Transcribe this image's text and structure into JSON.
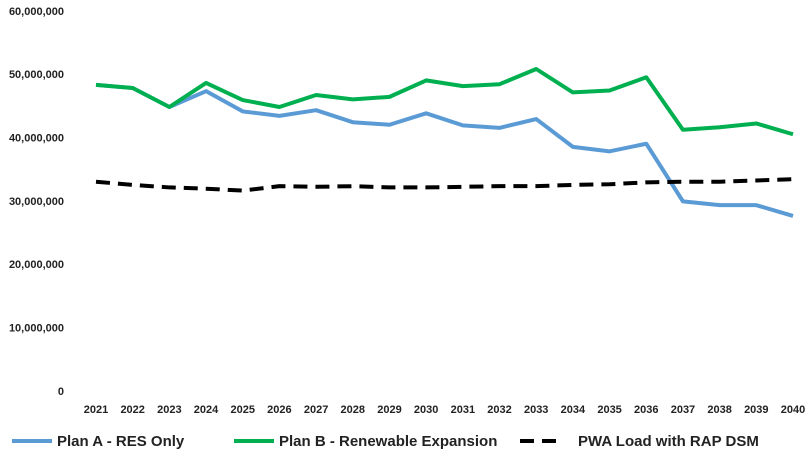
{
  "chart_data": {
    "type": "line",
    "categories": [
      "2021",
      "2022",
      "2023",
      "2024",
      "2025",
      "2026",
      "2027",
      "2028",
      "2029",
      "2030",
      "2031",
      "2032",
      "2033",
      "2034",
      "2035",
      "2036",
      "2037",
      "2038",
      "2039",
      "2040"
    ],
    "series": [
      {
        "name": "Plan A - RES Only",
        "color": "#5b9bd5",
        "line_style": "solid",
        "values": [
          48500000,
          48000000,
          45000000,
          47500000,
          44300000,
          43600000,
          44500000,
          42600000,
          42200000,
          44000000,
          42100000,
          41700000,
          43100000,
          38700000,
          38000000,
          39200000,
          30100000,
          29500000,
          29500000,
          27800000
        ]
      },
      {
        "name": "Plan B - Renewable Expansion",
        "color": "#00b050",
        "line_style": "solid",
        "values": [
          48500000,
          48000000,
          45000000,
          48800000,
          46100000,
          45000000,
          46900000,
          46200000,
          46600000,
          49200000,
          48300000,
          48600000,
          51000000,
          47300000,
          47600000,
          49700000,
          41400000,
          41800000,
          42400000,
          40700000
        ]
      },
      {
        "name": "PWA Load with RAP DSM",
        "color": "#000000",
        "line_style": "dashed",
        "values": [
          33200000,
          32700000,
          32300000,
          32100000,
          31800000,
          32500000,
          32400000,
          32500000,
          32300000,
          32300000,
          32400000,
          32500000,
          32500000,
          32700000,
          32800000,
          33100000,
          33200000,
          33200000,
          33400000,
          33600000
        ]
      }
    ],
    "ylim": [
      0,
      60000000
    ],
    "yticks": [
      0,
      {
        "value": 10000000,
        "label": "10,000,000"
      },
      {
        "value": 20000000,
        "label": "20,000,000"
      },
      {
        "value": 30000000,
        "label": "30,000,000"
      },
      {
        "value": 40000000,
        "label": "40,000,000"
      },
      {
        "value": 50000000,
        "label": "50,000,000"
      },
      {
        "value": 60000000,
        "label": "60,000,000"
      }
    ],
    "grid": false,
    "legend": "bottom"
  }
}
